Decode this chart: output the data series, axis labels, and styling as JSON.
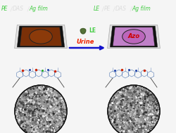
{
  "bg_color": "#f5f5f5",
  "title_left_parts": [
    "PE",
    "/",
    "DAS",
    "/",
    "Ag film"
  ],
  "title_left_colors": [
    "#44cc44",
    "#dddddd",
    "#dddddd",
    "#dddddd",
    "#44cc44"
  ],
  "title_right_parts": [
    "LE",
    "/",
    "PE",
    "/",
    "DAS",
    "/",
    "Ag film"
  ],
  "title_right_colors": [
    "#44cc44",
    "#dddddd",
    "#dddddd",
    "#dddddd",
    "#dddddd",
    "#dddddd",
    "#44cc44"
  ],
  "le_label": "LE",
  "le_color": "#44cc44",
  "urine_label": "Urine",
  "urine_color": "#ee2200",
  "arrow_color": "#1111cc",
  "device_left_face": "#7a3008",
  "device_right_face": "#c080c8",
  "device_frame_color": "#d8d8d8",
  "device_black": "#111111",
  "ellipse_left": "#8b3a0a",
  "ellipse_right": "#bb66bb",
  "azo_text": "Azo",
  "azo_color": "#cc0000",
  "micro_bg": "#606060",
  "micro_light": "#c8c8c8",
  "micro_dark": "#282828",
  "mol_line_color": "#6688bb",
  "mol_dot_red": "#cc2200",
  "mol_dot_blue": "#2244aa",
  "mol_dot_green": "#22aa22"
}
